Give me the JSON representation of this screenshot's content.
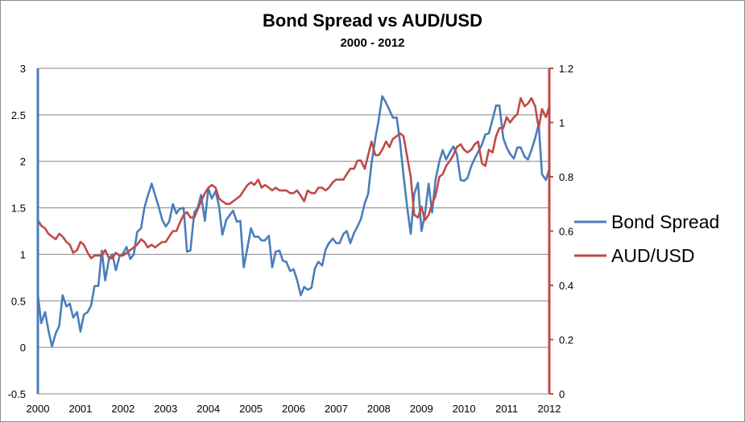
{
  "chart_data": {
    "type": "line",
    "title": "Bond Spread vs AUD/USD",
    "subtitle": "2000 - 2012",
    "xlabel": "",
    "ylabel": "",
    "xlim": [
      2000,
      2012
    ],
    "x_ticks": [
      "2000",
      "2001",
      "2002",
      "2003",
      "2004",
      "2005",
      "2006",
      "2007",
      "2008",
      "2009",
      "2010",
      "2011",
      "2012"
    ],
    "y_left": {
      "lim": [
        -0.5,
        3
      ],
      "ticks": [
        "-0.5",
        "0",
        "0.5",
        "1",
        "1.5",
        "2",
        "2.5",
        "3"
      ]
    },
    "y_right": {
      "lim": [
        0,
        1.2
      ],
      "ticks": [
        "0",
        "0.2",
        "0.4",
        "0.6",
        "0.8",
        "1",
        "1.2"
      ]
    },
    "grid": true,
    "legend_position": "right",
    "series": [
      {
        "name": "Bond Spread",
        "axis": "left",
        "color": "#4a7ebb",
        "points": [
          [
            2000.0,
            0.57
          ],
          [
            2000.08,
            0.26
          ],
          [
            2000.17,
            0.38
          ],
          [
            2000.25,
            0.18
          ],
          [
            2000.33,
            0.01
          ],
          [
            2000.42,
            0.15
          ],
          [
            2000.5,
            0.23
          ],
          [
            2000.58,
            0.56
          ],
          [
            2000.67,
            0.44
          ],
          [
            2000.75,
            0.47
          ],
          [
            2000.83,
            0.32
          ],
          [
            2000.92,
            0.38
          ],
          [
            2001.0,
            0.17
          ],
          [
            2001.08,
            0.35
          ],
          [
            2001.17,
            0.38
          ],
          [
            2001.25,
            0.45
          ],
          [
            2001.33,
            0.66
          ],
          [
            2001.42,
            0.66
          ],
          [
            2001.5,
            1.04
          ],
          [
            2001.58,
            0.72
          ],
          [
            2001.67,
            0.95
          ],
          [
            2001.75,
            1.0
          ],
          [
            2001.83,
            0.83
          ],
          [
            2001.92,
            0.98
          ],
          [
            2002.0,
            1.01
          ],
          [
            2002.08,
            1.08
          ],
          [
            2002.17,
            0.95
          ],
          [
            2002.25,
            1.0
          ],
          [
            2002.33,
            1.24
          ],
          [
            2002.42,
            1.28
          ],
          [
            2002.5,
            1.5
          ],
          [
            2002.58,
            1.63
          ],
          [
            2002.67,
            1.76
          ],
          [
            2002.75,
            1.64
          ],
          [
            2002.83,
            1.52
          ],
          [
            2002.92,
            1.37
          ],
          [
            2003.0,
            1.3
          ],
          [
            2003.08,
            1.35
          ],
          [
            2003.17,
            1.54
          ],
          [
            2003.25,
            1.44
          ],
          [
            2003.33,
            1.49
          ],
          [
            2003.42,
            1.5
          ],
          [
            2003.5,
            1.03
          ],
          [
            2003.58,
            1.04
          ],
          [
            2003.67,
            1.45
          ],
          [
            2003.75,
            1.5
          ],
          [
            2003.83,
            1.64
          ],
          [
            2003.92,
            1.36
          ],
          [
            2004.0,
            1.71
          ],
          [
            2004.08,
            1.6
          ],
          [
            2004.17,
            1.68
          ],
          [
            2004.25,
            1.52
          ],
          [
            2004.33,
            1.21
          ],
          [
            2004.42,
            1.37
          ],
          [
            2004.5,
            1.42
          ],
          [
            2004.58,
            1.47
          ],
          [
            2004.67,
            1.35
          ],
          [
            2004.75,
            1.36
          ],
          [
            2004.83,
            0.86
          ],
          [
            2004.92,
            1.08
          ],
          [
            2005.0,
            1.28
          ],
          [
            2005.08,
            1.19
          ],
          [
            2005.17,
            1.19
          ],
          [
            2005.25,
            1.15
          ],
          [
            2005.33,
            1.15
          ],
          [
            2005.42,
            1.2
          ],
          [
            2005.5,
            0.86
          ],
          [
            2005.58,
            1.03
          ],
          [
            2005.67,
            1.04
          ],
          [
            2005.75,
            0.93
          ],
          [
            2005.83,
            0.92
          ],
          [
            2005.92,
            0.82
          ],
          [
            2006.0,
            0.84
          ],
          [
            2006.08,
            0.73
          ],
          [
            2006.17,
            0.56
          ],
          [
            2006.25,
            0.65
          ],
          [
            2006.33,
            0.62
          ],
          [
            2006.42,
            0.64
          ],
          [
            2006.5,
            0.85
          ],
          [
            2006.58,
            0.92
          ],
          [
            2006.67,
            0.88
          ],
          [
            2006.75,
            1.05
          ],
          [
            2006.83,
            1.12
          ],
          [
            2006.92,
            1.17
          ],
          [
            2007.0,
            1.12
          ],
          [
            2007.08,
            1.12
          ],
          [
            2007.17,
            1.22
          ],
          [
            2007.25,
            1.25
          ],
          [
            2007.33,
            1.12
          ],
          [
            2007.42,
            1.23
          ],
          [
            2007.5,
            1.3
          ],
          [
            2007.58,
            1.38
          ],
          [
            2007.67,
            1.55
          ],
          [
            2007.75,
            1.65
          ],
          [
            2007.83,
            1.98
          ],
          [
            2007.92,
            2.25
          ],
          [
            2008.0,
            2.45
          ],
          [
            2008.08,
            2.7
          ],
          [
            2008.17,
            2.63
          ],
          [
            2008.25,
            2.55
          ],
          [
            2008.33,
            2.47
          ],
          [
            2008.42,
            2.47
          ],
          [
            2008.5,
            2.2
          ],
          [
            2008.58,
            1.85
          ],
          [
            2008.67,
            1.49
          ],
          [
            2008.75,
            1.22
          ],
          [
            2008.83,
            1.65
          ],
          [
            2008.92,
            1.77
          ],
          [
            2009.0,
            1.25
          ],
          [
            2009.08,
            1.42
          ],
          [
            2009.17,
            1.76
          ],
          [
            2009.25,
            1.45
          ],
          [
            2009.33,
            1.8
          ],
          [
            2009.42,
            2.0
          ],
          [
            2009.5,
            2.12
          ],
          [
            2009.58,
            2.02
          ],
          [
            2009.67,
            2.1
          ],
          [
            2009.75,
            2.16
          ],
          [
            2009.83,
            2.08
          ],
          [
            2009.92,
            1.8
          ],
          [
            2010.0,
            1.79
          ],
          [
            2010.08,
            1.82
          ],
          [
            2010.17,
            1.95
          ],
          [
            2010.25,
            2.03
          ],
          [
            2010.33,
            2.1
          ],
          [
            2010.42,
            2.18
          ],
          [
            2010.5,
            2.29
          ],
          [
            2010.58,
            2.3
          ],
          [
            2010.67,
            2.45
          ],
          [
            2010.75,
            2.6
          ],
          [
            2010.83,
            2.6
          ],
          [
            2010.92,
            2.25
          ],
          [
            2011.0,
            2.15
          ],
          [
            2011.08,
            2.08
          ],
          [
            2011.17,
            2.03
          ],
          [
            2011.25,
            2.15
          ],
          [
            2011.33,
            2.15
          ],
          [
            2011.42,
            2.05
          ],
          [
            2011.5,
            2.02
          ],
          [
            2011.58,
            2.12
          ],
          [
            2011.67,
            2.25
          ],
          [
            2011.75,
            2.4
          ],
          [
            2011.83,
            1.86
          ],
          [
            2011.92,
            1.8
          ],
          [
            2012.0,
            1.92
          ]
        ]
      },
      {
        "name": "AUD/USD",
        "axis": "right",
        "color": "#be4b48",
        "points": [
          [
            2000.0,
            0.64
          ],
          [
            2000.08,
            0.62
          ],
          [
            2000.17,
            0.61
          ],
          [
            2000.25,
            0.59
          ],
          [
            2000.33,
            0.58
          ],
          [
            2000.42,
            0.57
          ],
          [
            2000.5,
            0.59
          ],
          [
            2000.58,
            0.58
          ],
          [
            2000.67,
            0.56
          ],
          [
            2000.75,
            0.55
          ],
          [
            2000.83,
            0.52
          ],
          [
            2000.92,
            0.53
          ],
          [
            2001.0,
            0.56
          ],
          [
            2001.08,
            0.55
          ],
          [
            2001.17,
            0.52
          ],
          [
            2001.25,
            0.5
          ],
          [
            2001.33,
            0.51
          ],
          [
            2001.42,
            0.51
          ],
          [
            2001.5,
            0.51
          ],
          [
            2001.58,
            0.53
          ],
          [
            2001.67,
            0.5
          ],
          [
            2001.75,
            0.5
          ],
          [
            2001.83,
            0.52
          ],
          [
            2001.92,
            0.51
          ],
          [
            2002.0,
            0.51
          ],
          [
            2002.08,
            0.52
          ],
          [
            2002.17,
            0.53
          ],
          [
            2002.25,
            0.54
          ],
          [
            2002.33,
            0.55
          ],
          [
            2002.42,
            0.57
          ],
          [
            2002.5,
            0.56
          ],
          [
            2002.58,
            0.54
          ],
          [
            2002.67,
            0.55
          ],
          [
            2002.75,
            0.54
          ],
          [
            2002.83,
            0.55
          ],
          [
            2002.92,
            0.56
          ],
          [
            2003.0,
            0.56
          ],
          [
            2003.08,
            0.58
          ],
          [
            2003.17,
            0.6
          ],
          [
            2003.25,
            0.6
          ],
          [
            2003.33,
            0.63
          ],
          [
            2003.42,
            0.66
          ],
          [
            2003.5,
            0.67
          ],
          [
            2003.58,
            0.65
          ],
          [
            2003.67,
            0.65
          ],
          [
            2003.75,
            0.68
          ],
          [
            2003.83,
            0.71
          ],
          [
            2003.92,
            0.74
          ],
          [
            2004.0,
            0.76
          ],
          [
            2004.08,
            0.77
          ],
          [
            2004.17,
            0.76
          ],
          [
            2004.25,
            0.72
          ],
          [
            2004.33,
            0.71
          ],
          [
            2004.42,
            0.7
          ],
          [
            2004.5,
            0.7
          ],
          [
            2004.58,
            0.71
          ],
          [
            2004.67,
            0.72
          ],
          [
            2004.75,
            0.73
          ],
          [
            2004.83,
            0.75
          ],
          [
            2004.92,
            0.77
          ],
          [
            2005.0,
            0.78
          ],
          [
            2005.08,
            0.77
          ],
          [
            2005.17,
            0.79
          ],
          [
            2005.25,
            0.76
          ],
          [
            2005.33,
            0.77
          ],
          [
            2005.42,
            0.76
          ],
          [
            2005.5,
            0.75
          ],
          [
            2005.58,
            0.76
          ],
          [
            2005.67,
            0.75
          ],
          [
            2005.75,
            0.75
          ],
          [
            2005.83,
            0.75
          ],
          [
            2005.92,
            0.74
          ],
          [
            2006.0,
            0.74
          ],
          [
            2006.08,
            0.75
          ],
          [
            2006.17,
            0.73
          ],
          [
            2006.25,
            0.71
          ],
          [
            2006.33,
            0.75
          ],
          [
            2006.42,
            0.74
          ],
          [
            2006.5,
            0.74
          ],
          [
            2006.58,
            0.76
          ],
          [
            2006.67,
            0.76
          ],
          [
            2006.75,
            0.75
          ],
          [
            2006.83,
            0.76
          ],
          [
            2006.92,
            0.78
          ],
          [
            2007.0,
            0.79
          ],
          [
            2007.08,
            0.79
          ],
          [
            2007.17,
            0.79
          ],
          [
            2007.25,
            0.81
          ],
          [
            2007.33,
            0.83
          ],
          [
            2007.42,
            0.83
          ],
          [
            2007.5,
            0.86
          ],
          [
            2007.58,
            0.86
          ],
          [
            2007.67,
            0.83
          ],
          [
            2007.75,
            0.88
          ],
          [
            2007.83,
            0.93
          ],
          [
            2007.92,
            0.88
          ],
          [
            2008.0,
            0.88
          ],
          [
            2008.08,
            0.9
          ],
          [
            2008.17,
            0.93
          ],
          [
            2008.25,
            0.91
          ],
          [
            2008.33,
            0.94
          ],
          [
            2008.42,
            0.95
          ],
          [
            2008.5,
            0.96
          ],
          [
            2008.58,
            0.95
          ],
          [
            2008.67,
            0.87
          ],
          [
            2008.75,
            0.8
          ],
          [
            2008.83,
            0.66
          ],
          [
            2008.92,
            0.65
          ],
          [
            2009.0,
            0.69
          ],
          [
            2009.08,
            0.64
          ],
          [
            2009.17,
            0.66
          ],
          [
            2009.25,
            0.7
          ],
          [
            2009.33,
            0.73
          ],
          [
            2009.42,
            0.8
          ],
          [
            2009.5,
            0.81
          ],
          [
            2009.58,
            0.84
          ],
          [
            2009.67,
            0.86
          ],
          [
            2009.75,
            0.88
          ],
          [
            2009.83,
            0.91
          ],
          [
            2009.92,
            0.92
          ],
          [
            2010.0,
            0.9
          ],
          [
            2010.08,
            0.89
          ],
          [
            2010.17,
            0.9
          ],
          [
            2010.25,
            0.92
          ],
          [
            2010.33,
            0.93
          ],
          [
            2010.42,
            0.85
          ],
          [
            2010.5,
            0.84
          ],
          [
            2010.58,
            0.9
          ],
          [
            2010.67,
            0.89
          ],
          [
            2010.75,
            0.95
          ],
          [
            2010.83,
            0.98
          ],
          [
            2010.92,
            0.98
          ],
          [
            2011.0,
            1.02
          ],
          [
            2011.08,
            1.0
          ],
          [
            2011.17,
            1.02
          ],
          [
            2011.25,
            1.03
          ],
          [
            2011.33,
            1.09
          ],
          [
            2011.42,
            1.06
          ],
          [
            2011.5,
            1.07
          ],
          [
            2011.58,
            1.09
          ],
          [
            2011.67,
            1.06
          ],
          [
            2011.75,
            0.98
          ],
          [
            2011.83,
            1.05
          ],
          [
            2011.92,
            1.02
          ],
          [
            2012.0,
            1.06
          ]
        ]
      }
    ]
  }
}
